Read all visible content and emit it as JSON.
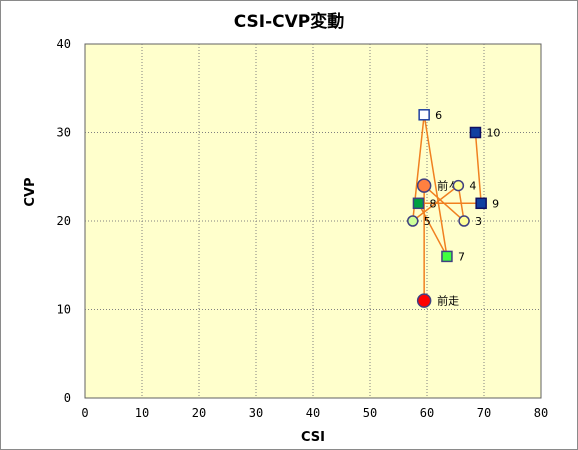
{
  "chart_data": {
    "type": "scatter",
    "title": "CSI-CVP変動",
    "xlabel": "CSI",
    "ylabel": "CVP",
    "xlim": [
      0,
      80
    ],
    "ylim": [
      0,
      40
    ],
    "xticks": [
      0,
      10,
      20,
      30,
      40,
      50,
      60,
      70,
      80
    ],
    "yticks": [
      0,
      10,
      20,
      30,
      40
    ],
    "grid": true,
    "colors": {
      "plot_bg": "#ffffcc",
      "line": "#f08020",
      "grid": "#808080"
    },
    "points": [
      {
        "label": "前走",
        "x": 59.5,
        "y": 11,
        "marker": "circle",
        "fill": "#ff0000",
        "stroke": "#404080"
      },
      {
        "label": "前々",
        "x": 59.5,
        "y": 24,
        "marker": "circle",
        "fill": "#ff8040",
        "stroke": "#404080"
      },
      {
        "label": "3",
        "x": 66.5,
        "y": 20,
        "marker": "circle",
        "fill": "#ffff99",
        "stroke": "#404080"
      },
      {
        "label": "4",
        "x": 65.5,
        "y": 24,
        "marker": "circle",
        "fill": "#ffff99",
        "stroke": "#404080"
      },
      {
        "label": "5",
        "x": 57.5,
        "y": 20,
        "marker": "circle",
        "fill": "#ccff99",
        "stroke": "#404080"
      },
      {
        "label": "6",
        "x": 59.5,
        "y": 32,
        "marker": "square",
        "fill": "#ffffff",
        "stroke": "#2040a0"
      },
      {
        "label": "7",
        "x": 63.5,
        "y": 16,
        "marker": "square",
        "fill": "#40ff40",
        "stroke": "#404080"
      },
      {
        "label": "8",
        "x": 58.5,
        "y": 22,
        "marker": "square",
        "fill": "#00a040",
        "stroke": "#404080"
      },
      {
        "label": "9",
        "x": 69.5,
        "y": 22,
        "marker": "square",
        "fill": "#1040a0",
        "stroke": "#101060"
      },
      {
        "label": "10",
        "x": 68.5,
        "y": 30,
        "marker": "square",
        "fill": "#1040a0",
        "stroke": "#101060"
      }
    ]
  }
}
